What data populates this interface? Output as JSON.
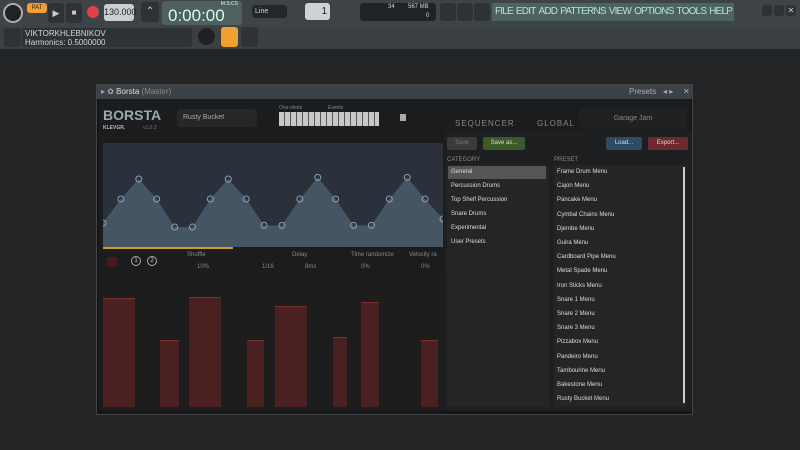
{
  "toolbar": {
    "pat_label": "PAT",
    "tempo": "130.000",
    "time": "0:00:00",
    "time_label": "M:S:CS",
    "snap": "Line",
    "pattern": "1",
    "cpu": "34",
    "memory": "567 MB",
    "polyphony": "0"
  },
  "menu": [
    "FILE",
    "EDIT",
    "ADD",
    "PATTERNS",
    "VIEW",
    "OPTIONS",
    "TOOLS",
    "HELP"
  ],
  "hint": {
    "user": "VIKTORKHLEBNIKOV",
    "message": "Harmonics: 0.5000000"
  },
  "plugin": {
    "title": "Borsta",
    "title_suffix": "(Master)",
    "presets_label": "Presets",
    "logo": "BORSTA",
    "brand": "KLEVGR.",
    "version": "v1.0.2",
    "preset_name": "Rusty Bucket",
    "oneshots_label": "One-shots",
    "events_label": "Events",
    "tabs": [
      "SEQUENCER",
      "GLOBAL"
    ],
    "preset_nav": "Garage Jam",
    "controls": {
      "shuffle_label": "Shuffle",
      "shuffle": "10%",
      "rate": "1/16",
      "delay_label": "Delay",
      "delay": "8ms",
      "time_rand_label": "Time randomize",
      "time_rand": "0%",
      "vel_rand_label": "Velocity ra",
      "vel_rand": "0%",
      "one": "1",
      "two": "2"
    },
    "envelope_values": [
      0.25,
      0.55,
      0.8,
      0.55,
      0.2,
      0.2,
      0.55,
      0.8,
      0.55,
      0.22,
      0.22,
      0.55,
      0.82,
      0.55,
      0.22,
      0.22,
      0.55,
      0.82,
      0.55,
      0.3
    ],
    "bar_values": [
      0.85,
      0.52,
      0.86,
      0.52,
      0.79,
      0.55,
      0.82,
      0.52
    ],
    "presets": {
      "save": "Save",
      "save_as": "Save as...",
      "load": "Load...",
      "export": "Export...",
      "category_header": "CATEGORY",
      "preset_header": "PRESET",
      "categories": [
        "General",
        "Percussion Drums",
        "Top Shelf Percussion",
        "Snare Drums",
        "Experimental",
        "User Presets"
      ],
      "selected_category": "General",
      "items": [
        "Frame Drum Menu",
        "Cajon Menu",
        "Pancake Menu",
        "Cymbal Chains Menu",
        "Djembe Menu",
        "Guira Menu",
        "Cardboard Pipe Menu",
        "Metal Spade Menu",
        "Iron Sticks Menu",
        "Snare 1 Menu",
        "Snare 2 Menu",
        "Snare 3 Menu",
        "Pizzabox Menu",
        "Pandeiro Menu",
        "Tambourine Menu",
        "Bakestone Menu",
        "Rusty Bucket Menu"
      ]
    }
  },
  "colors": {
    "accent": "#f0a030",
    "menu_bg": "#4d6361",
    "bar": "#4a2020",
    "envelope": "#5a6e80"
  }
}
